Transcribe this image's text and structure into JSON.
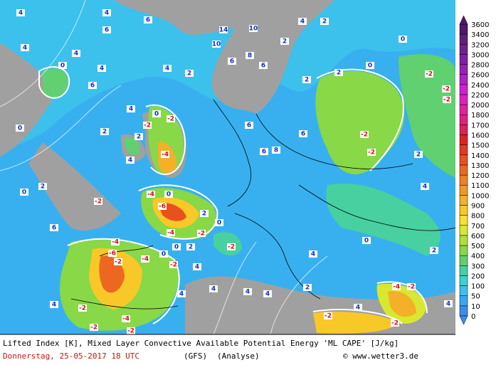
{
  "map": {
    "caption": "Lifted Index [K], Mixed Layer Convective Available Potential Energy 'ML CAPE' [J/kg]",
    "date": "Donnerstag, 25-05-2017  18 UTC",
    "model": "(GFS)",
    "run": "(Analyse)",
    "source": "© www.wetter3.de",
    "colorbar": {
      "levels": [
        0,
        10,
        50,
        100,
        200,
        300,
        400,
        500,
        600,
        700,
        800,
        900,
        1000,
        1100,
        1200,
        1300,
        1400,
        1500,
        1600,
        1700,
        1800,
        2000,
        2200,
        2400,
        2600,
        2800,
        3000,
        3200,
        3400,
        3600
      ],
      "colors": [
        "#3c8cf0",
        "#38a8f2",
        "#3cc0ec",
        "#40d0d0",
        "#48d0a0",
        "#60d070",
        "#88d848",
        "#b0e038",
        "#d8e830",
        "#f8e030",
        "#f8c828",
        "#f4b028",
        "#f09828",
        "#f08020",
        "#ec6820",
        "#e85020",
        "#e43820",
        "#e02020",
        "#e0205a",
        "#e02080",
        "#e020a0",
        "#e020c0",
        "#d020d0",
        "#b020c8",
        "#9820b8",
        "#8020a8",
        "#702090",
        "#602078",
        "#501870"
      ]
    },
    "contour_labels": [
      4,
      4,
      6,
      14,
      10,
      10,
      4,
      4,
      6,
      0,
      4,
      6,
      4,
      2,
      6,
      8,
      6,
      2,
      4,
      2,
      0,
      0,
      -2,
      -2,
      -2,
      2,
      2,
      4,
      0,
      -2,
      -2,
      2,
      -4,
      0,
      2,
      4,
      6,
      6,
      8,
      6,
      -2,
      -2,
      2,
      4,
      0,
      2,
      -2,
      -4,
      0,
      -6,
      2,
      -4,
      -2,
      0,
      -2,
      2,
      0,
      -4,
      -6,
      -2,
      -4,
      -2,
      4,
      0,
      4,
      4,
      6,
      4,
      -2,
      -2,
      -2,
      -4,
      4,
      4,
      0,
      -4,
      -2,
      2,
      4,
      -2,
      -2,
      2,
      4,
      4
    ]
  }
}
